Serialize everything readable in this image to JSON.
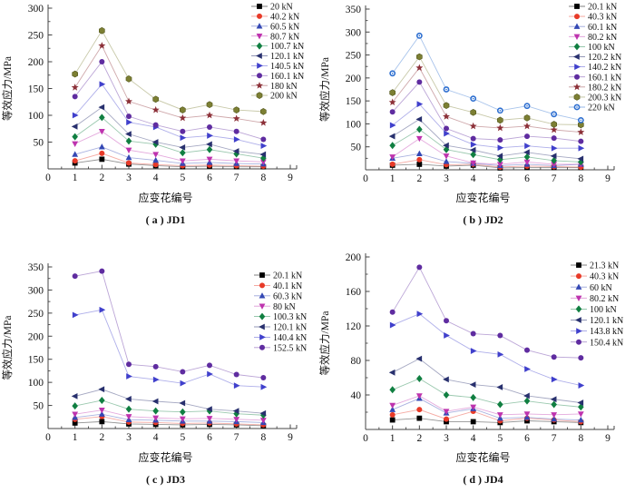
{
  "figure": {
    "ylabel": "等效应力/MPa",
    "xlabel": "应变花编号"
  },
  "chart_data": [
    {
      "type": "line",
      "caption": "( a ) JD1",
      "xlabel": "应变花编号",
      "ylabel": "等效应力/MPa",
      "xlim": [
        0,
        9
      ],
      "ylim": [
        0,
        300
      ],
      "ystep": 50,
      "x": [
        1,
        2,
        3,
        4,
        5,
        6,
        7,
        8
      ],
      "grid": false,
      "legend_position": "top-right",
      "series": [
        {
          "name": "20 kN",
          "marker": "square",
          "color": "#000000",
          "values": [
            11,
            18,
            9,
            6,
            4,
            5,
            4,
            4
          ]
        },
        {
          "name": "40.2 kN",
          "marker": "circle",
          "color": "#E83A28",
          "values": [
            15,
            29,
            11,
            8,
            6,
            7,
            6,
            5
          ]
        },
        {
          "name": "60.5 kN",
          "marker": "triangle-up",
          "color": "#3448B4",
          "values": [
            27,
            41,
            21,
            16,
            10,
            12,
            10,
            9
          ]
        },
        {
          "name": "80.7 kN",
          "marker": "triangle-down",
          "color": "#BE33AE",
          "values": [
            47,
            70,
            35,
            27,
            15,
            18,
            15,
            13
          ]
        },
        {
          "name": "100.7 kN",
          "marker": "diamond",
          "color": "#107F41",
          "values": [
            60,
            96,
            52,
            46,
            30,
            36,
            28,
            20
          ]
        },
        {
          "name": "120.1 kN",
          "marker": "triangle-left",
          "color": "#28306E",
          "values": [
            79,
            115,
            65,
            50,
            40,
            46,
            33,
            27
          ]
        },
        {
          "name": "140.5 kN",
          "marker": "triangle-right",
          "color": "#4040CC",
          "values": [
            100,
            158,
            87,
            78,
            58,
            62,
            55,
            43
          ]
        },
        {
          "name": "160.1 kN",
          "marker": "circle",
          "color": "#5F2CA0",
          "values": [
            135,
            200,
            98,
            82,
            70,
            78,
            70,
            55
          ]
        },
        {
          "name": "180 kN",
          "marker": "star",
          "color": "#8C3038",
          "values": [
            152,
            230,
            126,
            110,
            95,
            100,
            94,
            86
          ]
        },
        {
          "name": "200 kN",
          "marker": "hexagon",
          "color": "#7C7F33",
          "values": [
            177,
            258,
            168,
            130,
            110,
            120,
            110,
            107
          ]
        }
      ]
    },
    {
      "type": "line",
      "caption": "( b ) JD2",
      "xlabel": "应变花编号",
      "ylabel": "等效应力/MPa",
      "xlim": [
        0,
        9
      ],
      "ylim": [
        0,
        350
      ],
      "ystep": 50,
      "x": [
        1,
        2,
        3,
        4,
        5,
        6,
        7,
        8
      ],
      "grid": false,
      "legend_position": "top-right",
      "series": [
        {
          "name": "20.1 kN",
          "marker": "square",
          "color": "#000000",
          "values": [
            10,
            12,
            8,
            10,
            4,
            5,
            5,
            5
          ]
        },
        {
          "name": "40.3 kN",
          "marker": "circle",
          "color": "#E83A28",
          "values": [
            12,
            22,
            11,
            12,
            6,
            8,
            7,
            6
          ]
        },
        {
          "name": "60.1 kN",
          "marker": "triangle-up",
          "color": "#3448B4",
          "values": [
            25,
            35,
            18,
            14,
            9,
            12,
            9,
            12
          ]
        },
        {
          "name": "80.2 kN",
          "marker": "triangle-down",
          "color": "#BE33AE",
          "values": [
            28,
            68,
            30,
            15,
            12,
            17,
            12,
            12
          ]
        },
        {
          "name": "100 kN",
          "marker": "diamond",
          "color": "#107F41",
          "values": [
            53,
            88,
            44,
            33,
            22,
            28,
            20,
            17
          ]
        },
        {
          "name": "120.2 kN",
          "marker": "triangle-left",
          "color": "#28306E",
          "values": [
            73,
            110,
            53,
            43,
            30,
            38,
            30,
            24
          ]
        },
        {
          "name": "140.2 kN",
          "marker": "triangle-right",
          "color": "#4040CC",
          "values": [
            97,
            143,
            79,
            55,
            48,
            52,
            47,
            47
          ]
        },
        {
          "name": "160.1 kN",
          "marker": "circle",
          "color": "#5F2CA0",
          "values": [
            126,
            191,
            90,
            68,
            65,
            73,
            69,
            62
          ]
        },
        {
          "name": "180.2 kN",
          "marker": "star",
          "color": "#8C3038",
          "values": [
            147,
            222,
            116,
            95,
            91,
            95,
            87,
            82
          ]
        },
        {
          "name": "200.3 kN",
          "marker": "hexagon",
          "color": "#7C7F33",
          "values": [
            168,
            246,
            140,
            125,
            108,
            113,
            99,
            98
          ]
        },
        {
          "name": "220 kN",
          "marker": "sphere",
          "color": "#2E6FD0",
          "values": [
            210,
            292,
            175,
            155,
            129,
            139,
            121,
            108
          ]
        }
      ]
    },
    {
      "type": "line",
      "caption": "( c ) JD3",
      "xlabel": "应变花编号",
      "ylabel": "等效应力/MPa",
      "xlim": [
        0,
        9
      ],
      "ylim": [
        0,
        350
      ],
      "ystep": 50,
      "x": [
        1,
        2,
        3,
        4,
        5,
        6,
        7,
        8
      ],
      "grid": false,
      "legend_position": "right",
      "series": [
        {
          "name": "20.1 kN",
          "marker": "square",
          "color": "#000000",
          "values": [
            12,
            15,
            10,
            9,
            8,
            9,
            8,
            6
          ]
        },
        {
          "name": "40.1 kN",
          "marker": "circle",
          "color": "#E83A28",
          "values": [
            20,
            26,
            14,
            13,
            11,
            12,
            10,
            8
          ]
        },
        {
          "name": "60.3 kN",
          "marker": "triangle-up",
          "color": "#3448B4",
          "values": [
            24,
            31,
            19,
            18,
            16,
            16,
            15,
            13
          ]
        },
        {
          "name": "80 kN",
          "marker": "triangle-down",
          "color": "#BE33AE",
          "values": [
            31,
            40,
            26,
            23,
            21,
            22,
            20,
            18
          ]
        },
        {
          "name": "100.3 kN",
          "marker": "diamond",
          "color": "#107F41",
          "values": [
            49,
            61,
            42,
            38,
            36,
            38,
            32,
            29
          ]
        },
        {
          "name": "120.1 kN",
          "marker": "triangle-left",
          "color": "#28306E",
          "values": [
            70,
            85,
            64,
            59,
            55,
            42,
            38,
            33
          ]
        },
        {
          "name": "140.4 kN",
          "marker": "triangle-right",
          "color": "#4040CC",
          "values": [
            246,
            257,
            113,
            106,
            98,
            118,
            93,
            90
          ]
        },
        {
          "name": "152.5 kN",
          "marker": "circle",
          "color": "#5F2CA0",
          "values": [
            330,
            341,
            139,
            134,
            123,
            137,
            117,
            110
          ]
        }
      ]
    },
    {
      "type": "line",
      "caption": "( d ) JD4",
      "xlabel": "应变花编号",
      "ylabel": "等效应力/MPa",
      "xlim": [
        0,
        9
      ],
      "ylim": [
        0,
        200
      ],
      "ystep": 40,
      "x": [
        1,
        2,
        3,
        4,
        5,
        6,
        7,
        8
      ],
      "grid": false,
      "legend_position": "top-right",
      "series": [
        {
          "name": "21.3 kN",
          "marker": "square",
          "color": "#000000",
          "values": [
            11,
            13,
            9,
            9,
            8,
            10,
            9,
            8
          ]
        },
        {
          "name": "40.3 kN",
          "marker": "circle",
          "color": "#E83A28",
          "values": [
            17,
            23,
            12,
            21,
            10,
            13,
            11,
            9
          ]
        },
        {
          "name": "60 kN",
          "marker": "triangle-up",
          "color": "#3448B4",
          "values": [
            23,
            36,
            19,
            24,
            13,
            14,
            12,
            11
          ]
        },
        {
          "name": "80.2 kN",
          "marker": "triangle-down",
          "color": "#BE33AE",
          "values": [
            28,
            39,
            21,
            26,
            17,
            18,
            17,
            18
          ]
        },
        {
          "name": "100 kN",
          "marker": "diamond",
          "color": "#107F41",
          "values": [
            46,
            59,
            40,
            37,
            29,
            33,
            29,
            26
          ]
        },
        {
          "name": "120.1 kN",
          "marker": "triangle-left",
          "color": "#28306E",
          "values": [
            66,
            82,
            58,
            52,
            49,
            39,
            35,
            31
          ]
        },
        {
          "name": "143.8 kN",
          "marker": "triangle-right",
          "color": "#4040CC",
          "values": [
            121,
            134,
            109,
            91,
            87,
            70,
            58,
            51
          ]
        },
        {
          "name": "150.4 kN",
          "marker": "circle",
          "color": "#5F2CA0",
          "values": [
            136,
            188,
            126,
            111,
            109,
            92,
            84,
            83
          ]
        }
      ]
    }
  ]
}
